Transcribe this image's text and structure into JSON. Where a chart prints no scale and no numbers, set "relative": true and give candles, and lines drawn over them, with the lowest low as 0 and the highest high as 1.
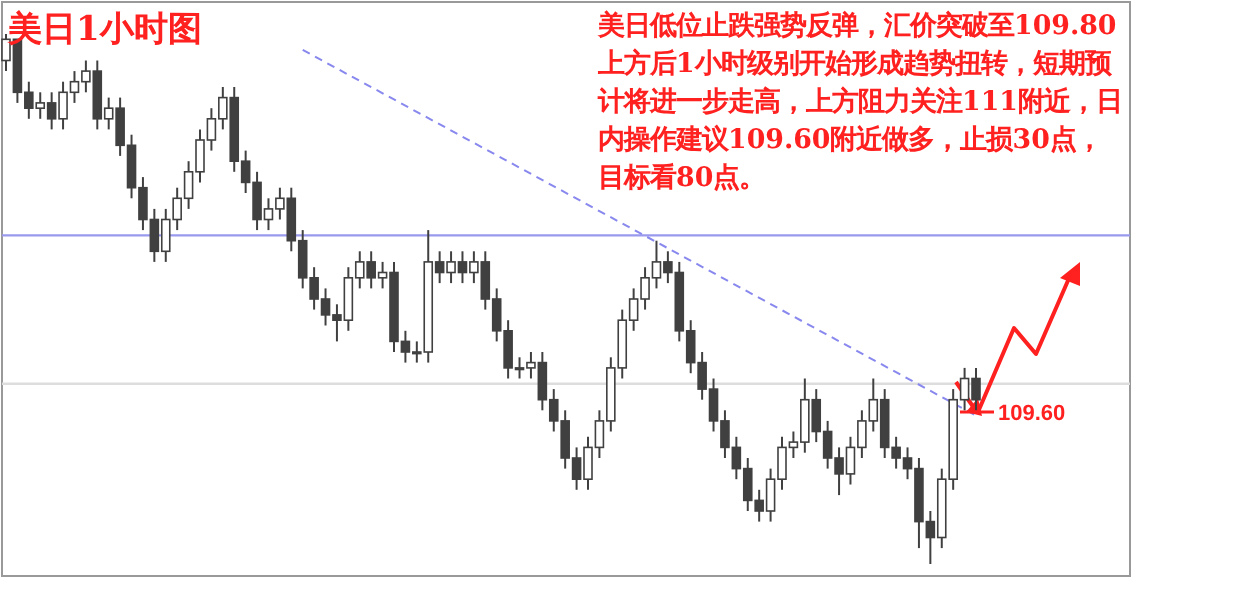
{
  "chart_data": {
    "type": "candlestick",
    "relative": true,
    "title": "美日1小时图",
    "annotations": [
      "美日低位止跌强势反弹，汇价突破至109.80上方后1小时级别开始形成趋势扭转，短期预计将进一步走高，上方阻力关注111附近，日内操作建议109.60附近做多，止损30点，目标看80点。",
      "109.60"
    ],
    "categories": [
      null,
      null,
      null,
      null,
      null,
      null,
      null,
      null,
      null,
      null,
      null,
      null,
      null,
      null,
      null,
      null,
      null,
      null,
      null,
      null,
      null,
      null,
      null,
      null,
      null,
      null,
      null,
      null,
      null,
      null,
      null,
      null,
      null,
      null,
      null,
      null,
      null,
      null,
      null,
      null,
      null,
      null,
      null,
      null,
      null,
      null,
      null,
      null,
      null,
      null,
      null,
      null,
      null,
      null,
      null,
      null,
      null,
      null,
      null,
      null,
      null,
      null,
      null,
      null,
      null,
      null,
      null,
      null,
      null,
      null,
      null,
      null,
      null,
      null,
      null,
      null,
      null,
      null,
      null,
      null,
      null,
      null,
      null,
      null,
      null,
      null
    ],
    "ref_lines": [
      {
        "axis": "y",
        "value": 0.62,
        "color": "#9999ee"
      },
      {
        "axis": "y",
        "value": 0.34,
        "color": "#dddddd"
      }
    ],
    "series": [
      {
        "color": "#404040",
        "ohlc": [
          [
            0.95,
            1.0,
            0.93,
            0.99
          ],
          [
            0.99,
            0.99,
            0.87,
            0.89
          ],
          [
            0.89,
            0.91,
            0.84,
            0.86
          ],
          [
            0.86,
            0.89,
            0.84,
            0.87
          ],
          [
            0.87,
            0.89,
            0.82,
            0.84
          ],
          [
            0.84,
            0.91,
            0.82,
            0.89
          ],
          [
            0.89,
            0.93,
            0.87,
            0.91
          ],
          [
            0.91,
            0.95,
            0.89,
            0.93
          ],
          [
            0.93,
            0.95,
            0.82,
            0.84
          ],
          [
            0.84,
            0.88,
            0.82,
            0.86
          ],
          [
            0.86,
            0.88,
            0.77,
            0.79
          ],
          [
            0.79,
            0.81,
            0.69,
            0.71
          ],
          [
            0.71,
            0.73,
            0.63,
            0.65
          ],
          [
            0.65,
            0.67,
            0.57,
            0.59
          ],
          [
            0.59,
            0.67,
            0.57,
            0.65
          ],
          [
            0.65,
            0.71,
            0.63,
            0.69
          ],
          [
            0.69,
            0.76,
            0.67,
            0.74
          ],
          [
            0.74,
            0.82,
            0.72,
            0.8
          ],
          [
            0.8,
            0.86,
            0.78,
            0.84
          ],
          [
            0.84,
            0.9,
            0.82,
            0.88
          ],
          [
            0.88,
            0.9,
            0.74,
            0.76
          ],
          [
            0.76,
            0.78,
            0.7,
            0.72
          ],
          [
            0.72,
            0.74,
            0.63,
            0.65
          ],
          [
            0.65,
            0.69,
            0.63,
            0.67
          ],
          [
            0.67,
            0.71,
            0.65,
            0.69
          ],
          [
            0.69,
            0.71,
            0.59,
            0.61
          ],
          [
            0.61,
            0.63,
            0.52,
            0.54
          ],
          [
            0.54,
            0.56,
            0.48,
            0.5
          ],
          [
            0.5,
            0.52,
            0.45,
            0.47
          ],
          [
            0.47,
            0.49,
            0.42,
            0.46
          ],
          [
            0.46,
            0.56,
            0.44,
            0.54
          ],
          [
            0.54,
            0.59,
            0.52,
            0.57
          ],
          [
            0.57,
            0.59,
            0.52,
            0.54
          ],
          [
            0.54,
            0.57,
            0.52,
            0.55
          ],
          [
            0.55,
            0.57,
            0.4,
            0.42
          ],
          [
            0.42,
            0.44,
            0.38,
            0.4
          ],
          [
            0.4,
            0.42,
            0.38,
            0.4
          ],
          [
            0.4,
            0.63,
            0.38,
            0.57
          ],
          [
            0.57,
            0.59,
            0.53,
            0.55
          ],
          [
            0.55,
            0.59,
            0.53,
            0.57
          ],
          [
            0.57,
            0.59,
            0.53,
            0.55
          ],
          [
            0.55,
            0.59,
            0.53,
            0.57
          ],
          [
            0.57,
            0.59,
            0.48,
            0.5
          ],
          [
            0.5,
            0.52,
            0.42,
            0.44
          ],
          [
            0.44,
            0.46,
            0.35,
            0.37
          ],
          [
            0.37,
            0.39,
            0.35,
            0.37
          ],
          [
            0.37,
            0.4,
            0.35,
            0.38
          ],
          [
            0.38,
            0.4,
            0.29,
            0.31
          ],
          [
            0.31,
            0.33,
            0.25,
            0.27
          ],
          [
            0.27,
            0.29,
            0.18,
            0.2
          ],
          [
            0.2,
            0.22,
            0.14,
            0.16
          ],
          [
            0.16,
            0.24,
            0.14,
            0.22
          ],
          [
            0.22,
            0.29,
            0.2,
            0.27
          ],
          [
            0.27,
            0.39,
            0.25,
            0.37
          ],
          [
            0.37,
            0.48,
            0.35,
            0.46
          ],
          [
            0.46,
            0.52,
            0.44,
            0.5
          ],
          [
            0.5,
            0.56,
            0.48,
            0.54
          ],
          [
            0.54,
            0.61,
            0.52,
            0.57
          ],
          [
            0.57,
            0.59,
            0.53,
            0.55
          ],
          [
            0.55,
            0.57,
            0.42,
            0.44
          ],
          [
            0.44,
            0.46,
            0.36,
            0.38
          ],
          [
            0.38,
            0.4,
            0.31,
            0.33
          ],
          [
            0.33,
            0.35,
            0.25,
            0.27
          ],
          [
            0.27,
            0.29,
            0.2,
            0.22
          ],
          [
            0.22,
            0.24,
            0.16,
            0.18
          ],
          [
            0.18,
            0.2,
            0.1,
            0.12
          ],
          [
            0.12,
            0.14,
            0.08,
            0.1
          ],
          [
            0.1,
            0.18,
            0.08,
            0.16
          ],
          [
            0.16,
            0.24,
            0.14,
            0.22
          ],
          [
            0.22,
            0.25,
            0.2,
            0.23
          ],
          [
            0.23,
            0.35,
            0.21,
            0.31
          ],
          [
            0.31,
            0.33,
            0.23,
            0.25
          ],
          [
            0.25,
            0.27,
            0.18,
            0.2
          ],
          [
            0.2,
            0.22,
            0.13,
            0.17
          ],
          [
            0.17,
            0.24,
            0.15,
            0.22
          ],
          [
            0.22,
            0.29,
            0.2,
            0.27
          ],
          [
            0.27,
            0.35,
            0.25,
            0.31
          ],
          [
            0.31,
            0.33,
            0.2,
            0.22
          ],
          [
            0.22,
            0.24,
            0.18,
            0.2
          ],
          [
            0.2,
            0.22,
            0.16,
            0.18
          ],
          [
            0.18,
            0.2,
            0.03,
            0.08
          ],
          [
            0.08,
            0.1,
            0.0,
            0.05
          ],
          [
            0.05,
            0.18,
            0.03,
            0.16
          ],
          [
            0.16,
            0.33,
            0.14,
            0.31
          ],
          [
            0.31,
            0.37,
            0.29,
            0.35
          ],
          [
            0.35,
            0.37,
            0.29,
            0.31
          ]
        ]
      },
      {
        "type": "line",
        "color": "#8888ee",
        "line_style": "dashed",
        "values": [
          null,
          null,
          null,
          null,
          null,
          null,
          null,
          null,
          null,
          null,
          null,
          null,
          null,
          null,
          null,
          null,
          null,
          null,
          null,
          null,
          null,
          null,
          null,
          null,
          null,
          null,
          0.97,
          null,
          null,
          null,
          null,
          null,
          null,
          null,
          null,
          null,
          null,
          null,
          null,
          null,
          null,
          null,
          null,
          null,
          null,
          null,
          null,
          null,
          null,
          null,
          null,
          null,
          null,
          null,
          null,
          null,
          null,
          null,
          null,
          null,
          null,
          null,
          null,
          null,
          null,
          null,
          null,
          null,
          null,
          null,
          null,
          null,
          null,
          null,
          null,
          null,
          null,
          null,
          null,
          null,
          null,
          null,
          null,
          null,
          null,
          0.28
        ]
      }
    ]
  }
}
